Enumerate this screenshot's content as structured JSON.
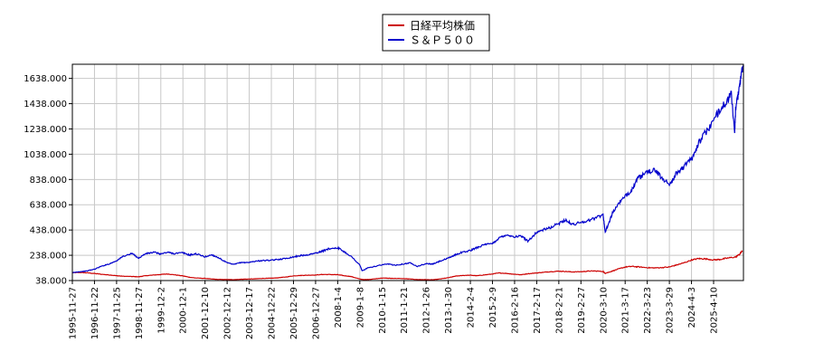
{
  "chart_data": {
    "type": "line",
    "legend_position": "top-center",
    "grid": true,
    "ylim": [
      38,
      1750
    ],
    "y_ticks": [
      "38.000",
      "238.000",
      "438.000",
      "638.000",
      "838.000",
      "1038.000",
      "1238.000",
      "1438.000",
      "1638.000"
    ],
    "x_ticks": [
      "1995-11-27",
      "1996-11-22",
      "1997-11-25",
      "1998-11-27",
      "1999-12-2",
      "2000-12-1",
      "2001-12-10",
      "2002-12-12",
      "2003-12-17",
      "2004-12-22",
      "2005-12-29",
      "2006-12-27",
      "2008-1-4",
      "2009-1-8",
      "2010-1-15",
      "2011-1-21",
      "2012-1-26",
      "2013-1-30",
      "2014-2-4",
      "2015-2-9",
      "2016-2-16",
      "2017-2-17",
      "2018-2-21",
      "2019-2-27",
      "2020-3-10",
      "2021-3-17",
      "2022-3-23",
      "2023-3-29",
      "2024-4-3",
      "2025-4-10"
    ],
    "series": [
      {
        "name": "日経平均株価",
        "color": "#cc0000",
        "points": [
          [
            0,
            100
          ],
          [
            0.3,
            102
          ],
          [
            0.6,
            100
          ],
          [
            1.0,
            94
          ],
          [
            1.3,
            88
          ],
          [
            1.7,
            82
          ],
          [
            2.0,
            76
          ],
          [
            2.3,
            72
          ],
          [
            2.7,
            70
          ],
          [
            3.0,
            68
          ],
          [
            3.3,
            76
          ],
          [
            3.7,
            82
          ],
          [
            4.0,
            86
          ],
          [
            4.3,
            90
          ],
          [
            4.6,
            84
          ],
          [
            5.0,
            75
          ],
          [
            5.3,
            64
          ],
          [
            5.6,
            58
          ],
          [
            6.0,
            55
          ],
          [
            6.3,
            50
          ],
          [
            6.6,
            47
          ],
          [
            7.0,
            46
          ],
          [
            7.3,
            45
          ],
          [
            7.6,
            48
          ],
          [
            8.0,
            50
          ],
          [
            8.3,
            52
          ],
          [
            8.6,
            55
          ],
          [
            9.0,
            56
          ],
          [
            9.3,
            60
          ],
          [
            9.6,
            65
          ],
          [
            10.0,
            75
          ],
          [
            10.3,
            78
          ],
          [
            10.6,
            80
          ],
          [
            11.0,
            82
          ],
          [
            11.3,
            86
          ],
          [
            11.6,
            86
          ],
          [
            12.0,
            84
          ],
          [
            12.3,
            76
          ],
          [
            12.6,
            70
          ],
          [
            13.0,
            50
          ],
          [
            13.2,
            45
          ],
          [
            13.5,
            48
          ],
          [
            14.0,
            58
          ],
          [
            14.3,
            56
          ],
          [
            14.6,
            55
          ],
          [
            15.0,
            53
          ],
          [
            15.3,
            50
          ],
          [
            15.6,
            46
          ],
          [
            16.0,
            45
          ],
          [
            16.3,
            44
          ],
          [
            16.6,
            50
          ],
          [
            17.0,
            60
          ],
          [
            17.3,
            72
          ],
          [
            17.6,
            78
          ],
          [
            18.0,
            80
          ],
          [
            18.3,
            76
          ],
          [
            18.6,
            82
          ],
          [
            19.0,
            90
          ],
          [
            19.3,
            98
          ],
          [
            19.6,
            95
          ],
          [
            20.0,
            88
          ],
          [
            20.3,
            84
          ],
          [
            20.6,
            92
          ],
          [
            21.0,
            98
          ],
          [
            21.3,
            103
          ],
          [
            21.6,
            108
          ],
          [
            22.0,
            112
          ],
          [
            22.3,
            110
          ],
          [
            22.6,
            106
          ],
          [
            23.0,
            108
          ],
          [
            23.3,
            112
          ],
          [
            23.6,
            114
          ],
          [
            24.0,
            110
          ],
          [
            24.1,
            95
          ],
          [
            24.4,
            112
          ],
          [
            24.7,
            130
          ],
          [
            25.0,
            145
          ],
          [
            25.3,
            150
          ],
          [
            25.6,
            146
          ],
          [
            26.0,
            140
          ],
          [
            26.3,
            138
          ],
          [
            26.6,
            140
          ],
          [
            27.0,
            145
          ],
          [
            27.3,
            160
          ],
          [
            27.6,
            175
          ],
          [
            28.0,
            200
          ],
          [
            28.3,
            212
          ],
          [
            28.6,
            210
          ],
          [
            29.0,
            202
          ],
          [
            29.3,
            205
          ],
          [
            29.6,
            215
          ],
          [
            30.0,
            225
          ],
          [
            30.2,
            250
          ],
          [
            30.3,
            275
          ]
        ]
      },
      {
        "name": "Ｓ＆Ｐ５００",
        "color": "#0000cc",
        "points": [
          [
            0,
            100
          ],
          [
            0.3,
            108
          ],
          [
            0.6,
            112
          ],
          [
            1.0,
            128
          ],
          [
            1.3,
            150
          ],
          [
            1.7,
            172
          ],
          [
            2.0,
            195
          ],
          [
            2.3,
            230
          ],
          [
            2.7,
            252
          ],
          [
            3.0,
            215
          ],
          [
            3.3,
            250
          ],
          [
            3.7,
            262
          ],
          [
            4.0,
            248
          ],
          [
            4.3,
            262
          ],
          [
            4.6,
            252
          ],
          [
            5.0,
            258
          ],
          [
            5.3,
            240
          ],
          [
            5.6,
            250
          ],
          [
            6.0,
            225
          ],
          [
            6.3,
            242
          ],
          [
            6.6,
            220
          ],
          [
            7.0,
            178
          ],
          [
            7.3,
            165
          ],
          [
            7.6,
            180
          ],
          [
            8.0,
            182
          ],
          [
            8.3,
            192
          ],
          [
            8.6,
            196
          ],
          [
            9.0,
            198
          ],
          [
            9.3,
            205
          ],
          [
            9.6,
            212
          ],
          [
            10.0,
            225
          ],
          [
            10.3,
            235
          ],
          [
            10.6,
            240
          ],
          [
            11.0,
            255
          ],
          [
            11.3,
            270
          ],
          [
            11.6,
            290
          ],
          [
            12.0,
            298
          ],
          [
            12.3,
            265
          ],
          [
            12.6,
            230
          ],
          [
            13.0,
            162
          ],
          [
            13.1,
            115
          ],
          [
            13.4,
            140
          ],
          [
            14.0,
            162
          ],
          [
            14.3,
            168
          ],
          [
            14.6,
            160
          ],
          [
            15.0,
            170
          ],
          [
            15.3,
            178
          ],
          [
            15.6,
            150
          ],
          [
            16.0,
            172
          ],
          [
            16.3,
            168
          ],
          [
            16.6,
            190
          ],
          [
            17.0,
            215
          ],
          [
            17.3,
            240
          ],
          [
            17.6,
            260
          ],
          [
            18.0,
            275
          ],
          [
            18.3,
            300
          ],
          [
            18.6,
            320
          ],
          [
            19.0,
            330
          ],
          [
            19.3,
            375
          ],
          [
            19.6,
            400
          ],
          [
            20.0,
            385
          ],
          [
            20.3,
            390
          ],
          [
            20.6,
            350
          ],
          [
            21.0,
            420
          ],
          [
            21.3,
            440
          ],
          [
            21.6,
            455
          ],
          [
            22.0,
            490
          ],
          [
            22.3,
            520
          ],
          [
            22.6,
            480
          ],
          [
            23.0,
            500
          ],
          [
            23.3,
            510
          ],
          [
            23.6,
            530
          ],
          [
            24.0,
            560
          ],
          [
            24.1,
            420
          ],
          [
            24.4,
            560
          ],
          [
            24.7,
            650
          ],
          [
            25.0,
            700
          ],
          [
            25.3,
            760
          ],
          [
            25.6,
            850
          ],
          [
            26.0,
            890
          ],
          [
            26.3,
            920
          ],
          [
            26.6,
            860
          ],
          [
            27.0,
            800
          ],
          [
            27.3,
            880
          ],
          [
            27.6,
            930
          ],
          [
            28.0,
            1000
          ],
          [
            28.3,
            1120
          ],
          [
            28.6,
            1200
          ],
          [
            29.0,
            1300
          ],
          [
            29.3,
            1400
          ],
          [
            29.6,
            1450
          ],
          [
            29.8,
            1520
          ],
          [
            29.95,
            1200
          ],
          [
            30.0,
            1400
          ],
          [
            30.15,
            1550
          ],
          [
            30.3,
            1720
          ],
          [
            30.35,
            1730
          ]
        ]
      }
    ]
  }
}
